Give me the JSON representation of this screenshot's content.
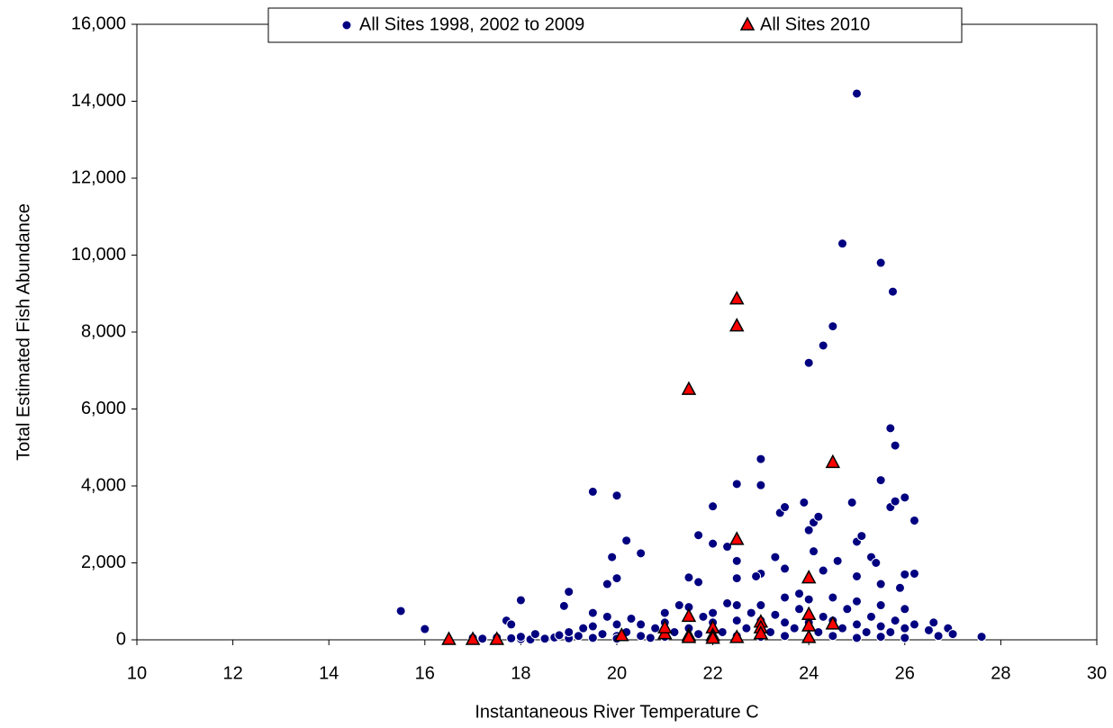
{
  "chart_data": {
    "type": "scatter",
    "xlabel": "Instantaneous River Temperature C",
    "ylabel": "Total Estimated Fish Abundance",
    "xlim": [
      10,
      30
    ],
    "xticks": [
      10,
      12,
      14,
      16,
      18,
      20,
      22,
      24,
      26,
      28,
      30
    ],
    "ylim": [
      0,
      16000
    ],
    "yticks": [
      0,
      {
        "value": 2000,
        "label": "2,000"
      },
      {
        "value": 4000,
        "label": "4,000"
      },
      {
        "value": 6000,
        "label": "6,000"
      },
      {
        "value": 8000,
        "label": "8,000"
      },
      {
        "value": 10000,
        "label": "10,000"
      },
      {
        "value": 12000,
        "label": "12,000"
      },
      {
        "value": 14000,
        "label": "14,000"
      },
      {
        "value": 16000,
        "label": "16,000"
      }
    ],
    "legend": "top",
    "series": [
      {
        "name": "All Sites 1998, 2002 to 2009",
        "color": "#000080",
        "marker": "circle",
        "x": [
          15.5,
          16,
          17.7,
          17.8,
          18,
          18.9,
          19,
          19.5,
          20,
          19.8,
          19.9,
          20,
          20.2,
          20.5,
          21.7,
          21.5,
          21.7,
          22,
          22,
          22.3,
          22.5,
          22.5,
          22.5,
          23,
          23,
          23,
          22.9,
          23.3,
          23.4,
          23.5,
          23.5,
          23.8,
          23.9,
          24,
          24,
          24.1,
          24.2,
          24.1,
          24.3,
          24.5,
          24.3,
          24.7,
          24.6,
          24.9,
          25,
          25,
          25.1,
          25,
          25.3,
          25.4,
          25.5,
          25.5,
          25.5,
          25.7,
          25.75,
          25.8,
          25.7,
          25.8,
          26,
          26,
          25.9,
          26.2,
          26.2,
          26.6,
          26.9,
          27,
          27.6,
          17,
          17,
          17.2,
          17.5,
          17.5,
          17.8,
          18,
          18,
          18.2,
          18.3,
          18.5,
          18.7,
          18.8,
          19,
          19,
          19.2,
          19.3,
          19.5,
          19.5,
          19.5,
          19.7,
          19.8,
          20,
          20,
          20,
          20.2,
          20.3,
          20.5,
          20.5,
          20.7,
          20.8,
          21,
          21,
          21,
          21.2,
          21.3,
          21.5,
          21.5,
          21.5,
          21.7,
          21.8,
          22,
          22,
          22,
          22.2,
          22.3,
          22.5,
          22.5,
          22.5,
          22.7,
          22.8,
          23,
          23,
          23,
          23.2,
          23.3,
          23.5,
          23.5,
          23.5,
          23.7,
          23.8,
          24,
          24,
          24,
          24.2,
          24.3,
          24.5,
          24.5,
          24.5,
          24.7,
          24.8,
          25,
          25,
          25,
          25.2,
          25.3,
          25.5,
          25.5,
          25.5,
          25.7,
          25.8,
          26,
          26,
          26,
          26.2,
          26.5,
          26.7
        ],
        "values": [
          750,
          280,
          500,
          400,
          1030,
          880,
          1250,
          3850,
          3750,
          1450,
          2150,
          1600,
          2580,
          2250,
          2720,
          1620,
          1500,
          3470,
          2500,
          2420,
          4050,
          2050,
          1600,
          4700,
          4020,
          1720,
          1650,
          2150,
          3300,
          3450,
          1850,
          1200,
          3570,
          7200,
          2850,
          3050,
          3200,
          2300,
          7650,
          8150,
          1800,
          10300,
          2050,
          3570,
          14200,
          2550,
          2700,
          1650,
          2150,
          2000,
          9800,
          4150,
          1450,
          5500,
          9050,
          5050,
          3450,
          3600,
          3700,
          1700,
          1350,
          3100,
          1720,
          450,
          300,
          150,
          80,
          20,
          50,
          30,
          10,
          60,
          40,
          20,
          80,
          10,
          150,
          30,
          60,
          120,
          40,
          200,
          100,
          300,
          50,
          350,
          700,
          150,
          600,
          100,
          400,
          30,
          200,
          550,
          100,
          400,
          50,
          300,
          80,
          700,
          450,
          200,
          900,
          50,
          300,
          850,
          150,
          600,
          50,
          450,
          700,
          200,
          950,
          100,
          500,
          900,
          300,
          700,
          80,
          500,
          900,
          200,
          650,
          100,
          450,
          1100,
          300,
          800,
          50,
          450,
          1050,
          200,
          600,
          100,
          500,
          1100,
          300,
          800,
          50,
          400,
          1000,
          200,
          600,
          80,
          350,
          900,
          200,
          500,
          50,
          300,
          800,
          400,
          250,
          100
        ]
      },
      {
        "name": "All Sites 2010",
        "color": "#ff0000",
        "marker": "triangle",
        "x": [
          16.5,
          17,
          17.5,
          20.1,
          21,
          21,
          21.5,
          21.5,
          21.5,
          21.5,
          22,
          22,
          22,
          22.5,
          22.5,
          22.5,
          22.5,
          23,
          23,
          23,
          24,
          24,
          24,
          24,
          24.5,
          24.5
        ],
        "values": [
          0,
          0,
          0,
          100,
          150,
          300,
          6500,
          600,
          100,
          50,
          300,
          100,
          30,
          8850,
          8150,
          2600,
          50,
          450,
          300,
          150,
          1600,
          650,
          350,
          50,
          4600,
          400
        ]
      }
    ]
  }
}
